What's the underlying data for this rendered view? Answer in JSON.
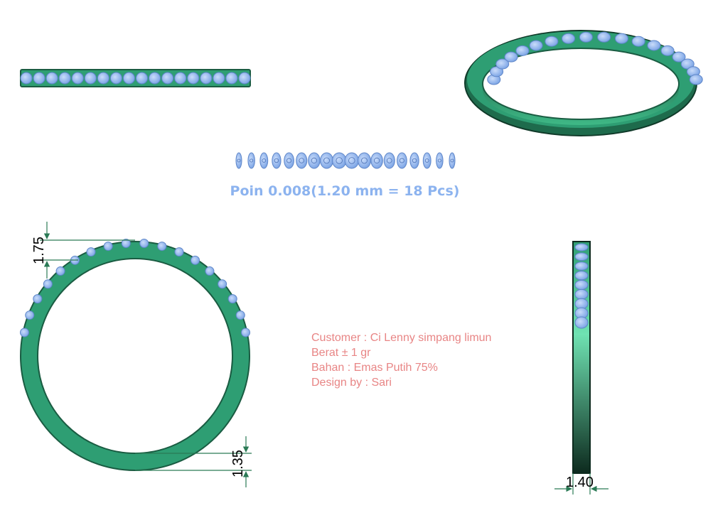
{
  "colors": {
    "metal": "#2e9e73",
    "metal_dark": "#1a5c42",
    "metal_light": "#5fd6a5",
    "stone": "#8fb6f0",
    "stone_dark": "#5f86c8",
    "label_blue": "#8cb3ef",
    "info_red": "#e88585",
    "dimension": "#2a7a55"
  },
  "stone_spec": {
    "label": "Poin 0.008(1.20 mm = 18 Pcs)"
  },
  "order_info": {
    "customer": "Customer : Ci Lenny simpang limun",
    "weight": "Berat ± 1 gr",
    "material": "Bahan : Emas Putih 75%",
    "designer": "Design by : Sari"
  },
  "dimensions": {
    "stone_height": "1.75",
    "band_thickness": "1.35",
    "band_width": "1.40"
  }
}
